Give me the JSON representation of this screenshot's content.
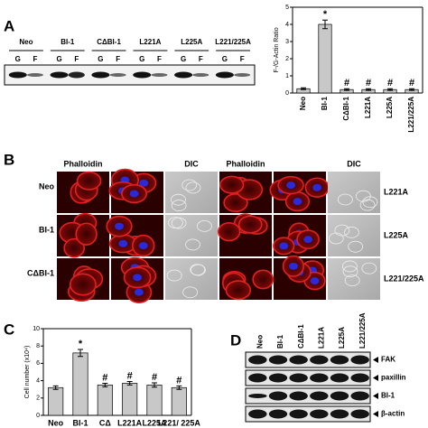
{
  "panel_labels": [
    "A",
    "B",
    "C",
    "D"
  ],
  "panel_a_blot": {
    "lanes": [
      "Neo",
      "BI-1",
      "CΔBI-1",
      "L221A",
      "L225A",
      "L221/225A"
    ],
    "fractions": [
      "G",
      "F"
    ]
  },
  "panel_b": {
    "column_headers": [
      "Phalloidin",
      "DIC",
      "Phalloidin",
      "DIC"
    ],
    "left_rows": [
      "Neo",
      "BI-1",
      "CΔBI-1"
    ],
    "right_rows": [
      "L221A",
      "L225A",
      "L221/225A"
    ]
  },
  "panel_d": {
    "lanes": [
      "Neo",
      "BI-1",
      "CΔBI-1",
      "L221A",
      "L225A",
      "L221/225A"
    ],
    "bands": [
      "FAK",
      "paxillin",
      "BI-1",
      "β-actin"
    ]
  },
  "chart_data": [
    {
      "type": "bar",
      "y_label": "F-/G-Actin Ratio",
      "categories": [
        "Neo",
        "BI-1",
        "CΔBI-1",
        "L221A",
        "L225A",
        "L221/225A"
      ],
      "values": [
        0.25,
        4.0,
        0.2,
        0.2,
        0.2,
        0.2
      ],
      "errors": [
        0.05,
        0.25,
        0.05,
        0.05,
        0.05,
        0.05
      ],
      "markers": [
        null,
        "*",
        "#",
        "#",
        "#",
        "#"
      ],
      "color": "#c8c8c8",
      "ylim": [
        0,
        5
      ],
      "yticks": [
        0,
        1,
        2,
        3,
        4,
        5
      ]
    },
    {
      "type": "bar",
      "y_label": "Cell number (x10⁴)",
      "categories": [
        "Neo",
        "BI-1",
        "CΔ",
        "L221A",
        "L225A",
        "L221/ 225A"
      ],
      "values": [
        3.2,
        7.2,
        3.5,
        3.7,
        3.5,
        3.2
      ],
      "errors": [
        0.2,
        0.4,
        0.2,
        0.2,
        0.25,
        0.2
      ],
      "markers": [
        null,
        "*",
        "#",
        "#",
        "#",
        "#"
      ],
      "color": "#c8c8c8",
      "ylim": [
        0,
        10
      ],
      "yticks": [
        0,
        2,
        4,
        6,
        8,
        10
      ]
    }
  ]
}
